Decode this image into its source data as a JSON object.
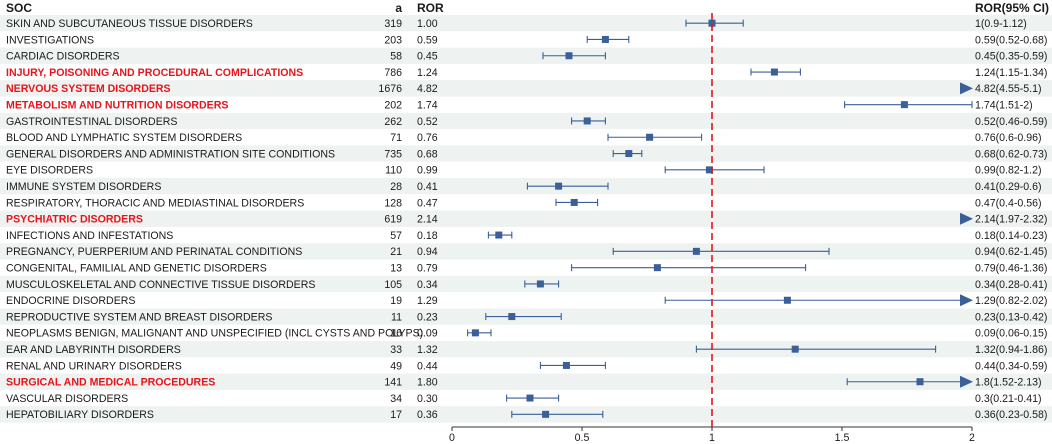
{
  "headers": {
    "soc": "SOC",
    "a": "a",
    "ror": "ROR",
    "ci": "ROR(95% CI)"
  },
  "chart_data": {
    "type": "forest",
    "xlim": [
      0,
      2
    ],
    "reference_line": 1,
    "x_ticks": [
      0,
      0.5,
      1,
      1.5,
      2
    ],
    "x_tick_labels": [
      "0",
      "0.5",
      "1",
      "1.5",
      "2"
    ],
    "colors": {
      "marker": "#3a5f99",
      "reference": "#e8141b",
      "highlight_text": "#e8141b",
      "band": "#eef2f0"
    },
    "rows": [
      {
        "soc": "SKIN AND SUBCUTANEOUS TISSUE DISORDERS",
        "a": "319",
        "ror_label": "1.00",
        "ci_label": "1(0.9-1.12)",
        "ror": 1.0,
        "low": 0.9,
        "high": 1.12,
        "highlight": false,
        "arrow": false
      },
      {
        "soc": "INVESTIGATIONS",
        "a": "203",
        "ror_label": "0.59",
        "ci_label": "0.59(0.52-0.68)",
        "ror": 0.59,
        "low": 0.52,
        "high": 0.68,
        "highlight": false,
        "arrow": false
      },
      {
        "soc": "CARDIAC DISORDERS",
        "a": "58",
        "ror_label": "0.45",
        "ci_label": "0.45(0.35-0.59)",
        "ror": 0.45,
        "low": 0.35,
        "high": 0.59,
        "highlight": false,
        "arrow": false
      },
      {
        "soc": "INJURY, POISONING AND PROCEDURAL COMPLICATIONS",
        "a": "786",
        "ror_label": "1.24",
        "ci_label": "1.24(1.15-1.34)",
        "ror": 1.24,
        "low": 1.15,
        "high": 1.34,
        "highlight": true,
        "arrow": false
      },
      {
        "soc": "NERVOUS SYSTEM DISORDERS",
        "a": "1676",
        "ror_label": "4.82",
        "ci_label": "4.82(4.55-5.1)",
        "ror": 4.82,
        "low": 4.55,
        "high": 5.1,
        "highlight": true,
        "arrow": true
      },
      {
        "soc": "METABOLISM AND NUTRITION DISORDERS",
        "a": "202",
        "ror_label": "1.74",
        "ci_label": "1.74(1.51-2)",
        "ror": 1.74,
        "low": 1.51,
        "high": 2.0,
        "highlight": true,
        "arrow": false
      },
      {
        "soc": "GASTROINTESTINAL DISORDERS",
        "a": "262",
        "ror_label": "0.52",
        "ci_label": "0.52(0.46-0.59)",
        "ror": 0.52,
        "low": 0.46,
        "high": 0.59,
        "highlight": false,
        "arrow": false
      },
      {
        "soc": "BLOOD AND LYMPHATIC SYSTEM DISORDERS",
        "a": "71",
        "ror_label": "0.76",
        "ci_label": "0.76(0.6-0.96)",
        "ror": 0.76,
        "low": 0.6,
        "high": 0.96,
        "highlight": false,
        "arrow": false
      },
      {
        "soc": "GENERAL DISORDERS AND ADMINISTRATION SITE CONDITIONS",
        "a": "735",
        "ror_label": "0.68",
        "ci_label": "0.68(0.62-0.73)",
        "ror": 0.68,
        "low": 0.62,
        "high": 0.73,
        "highlight": false,
        "arrow": false
      },
      {
        "soc": "EYE DISORDERS",
        "a": "110",
        "ror_label": "0.99",
        "ci_label": "0.99(0.82-1.2)",
        "ror": 0.99,
        "low": 0.82,
        "high": 1.2,
        "highlight": false,
        "arrow": false
      },
      {
        "soc": "IMMUNE SYSTEM DISORDERS",
        "a": "28",
        "ror_label": "0.41",
        "ci_label": "0.41(0.29-0.6)",
        "ror": 0.41,
        "low": 0.29,
        "high": 0.6,
        "highlight": false,
        "arrow": false
      },
      {
        "soc": "RESPIRATORY, THORACIC AND MEDIASTINAL DISORDERS",
        "a": "128",
        "ror_label": "0.47",
        "ci_label": "0.47(0.4-0.56)",
        "ror": 0.47,
        "low": 0.4,
        "high": 0.56,
        "highlight": false,
        "arrow": false
      },
      {
        "soc": "PSYCHIATRIC DISORDERS",
        "a": "619",
        "ror_label": "2.14",
        "ci_label": "2.14(1.97-2.32)",
        "ror": 2.14,
        "low": 1.97,
        "high": 2.32,
        "highlight": true,
        "arrow": true
      },
      {
        "soc": "INFECTIONS AND INFESTATIONS",
        "a": "57",
        "ror_label": "0.18",
        "ci_label": "0.18(0.14-0.23)",
        "ror": 0.18,
        "low": 0.14,
        "high": 0.23,
        "highlight": false,
        "arrow": false
      },
      {
        "soc": "PREGNANCY, PUERPERIUM AND PERINATAL CONDITIONS",
        "a": "21",
        "ror_label": "0.94",
        "ci_label": "0.94(0.62-1.45)",
        "ror": 0.94,
        "low": 0.62,
        "high": 1.45,
        "highlight": false,
        "arrow": false
      },
      {
        "soc": "CONGENITAL, FAMILIAL AND GENETIC DISORDERS",
        "a": "13",
        "ror_label": "0.79",
        "ci_label": "0.79(0.46-1.36)",
        "ror": 0.79,
        "low": 0.46,
        "high": 1.36,
        "highlight": false,
        "arrow": false
      },
      {
        "soc": "MUSCULOSKELETAL AND CONNECTIVE TISSUE DISORDERS",
        "a": "105",
        "ror_label": "0.34",
        "ci_label": "0.34(0.28-0.41)",
        "ror": 0.34,
        "low": 0.28,
        "high": 0.41,
        "highlight": false,
        "arrow": false
      },
      {
        "soc": "ENDOCRINE DISORDERS",
        "a": "19",
        "ror_label": "1.29",
        "ci_label": "1.29(0.82-2.02)",
        "ror": 1.29,
        "low": 0.82,
        "high": 2.02,
        "highlight": false,
        "arrow": true
      },
      {
        "soc": "REPRODUCTIVE SYSTEM AND BREAST DISORDERS",
        "a": "11",
        "ror_label": "0.23",
        "ci_label": "0.23(0.13-0.42)",
        "ror": 0.23,
        "low": 0.13,
        "high": 0.42,
        "highlight": false,
        "arrow": false
      },
      {
        "soc": "NEOPLASMS BENIGN, MALIGNANT AND UNSPECIFIED (INCL CYSTS AND POLYPS)",
        "a": "16",
        "ror_label": "0.09",
        "ci_label": "0.09(0.06-0.15)",
        "ror": 0.09,
        "low": 0.06,
        "high": 0.15,
        "highlight": false,
        "arrow": false
      },
      {
        "soc": "EAR AND LABYRINTH DISORDERS",
        "a": "33",
        "ror_label": "1.32",
        "ci_label": "1.32(0.94-1.86)",
        "ror": 1.32,
        "low": 0.94,
        "high": 1.86,
        "highlight": false,
        "arrow": false
      },
      {
        "soc": "RENAL AND URINARY DISORDERS",
        "a": "49",
        "ror_label": "0.44",
        "ci_label": "0.44(0.34-0.59)",
        "ror": 0.44,
        "low": 0.34,
        "high": 0.59,
        "highlight": false,
        "arrow": false
      },
      {
        "soc": "SURGICAL AND MEDICAL PROCEDURES",
        "a": "141",
        "ror_label": "1.80",
        "ci_label": "1.8(1.52-2.13)",
        "ror": 1.8,
        "low": 1.52,
        "high": 2.13,
        "highlight": true,
        "arrow": true
      },
      {
        "soc": "VASCULAR DISORDERS",
        "a": "34",
        "ror_label": "0.30",
        "ci_label": "0.3(0.21-0.41)",
        "ror": 0.3,
        "low": 0.21,
        "high": 0.41,
        "highlight": false,
        "arrow": false
      },
      {
        "soc": "HEPATOBILIARY DISORDERS",
        "a": "17",
        "ror_label": "0.36",
        "ci_label": "0.36(0.23-0.58)",
        "ror": 0.36,
        "low": 0.23,
        "high": 0.58,
        "highlight": false,
        "arrow": false
      }
    ]
  }
}
